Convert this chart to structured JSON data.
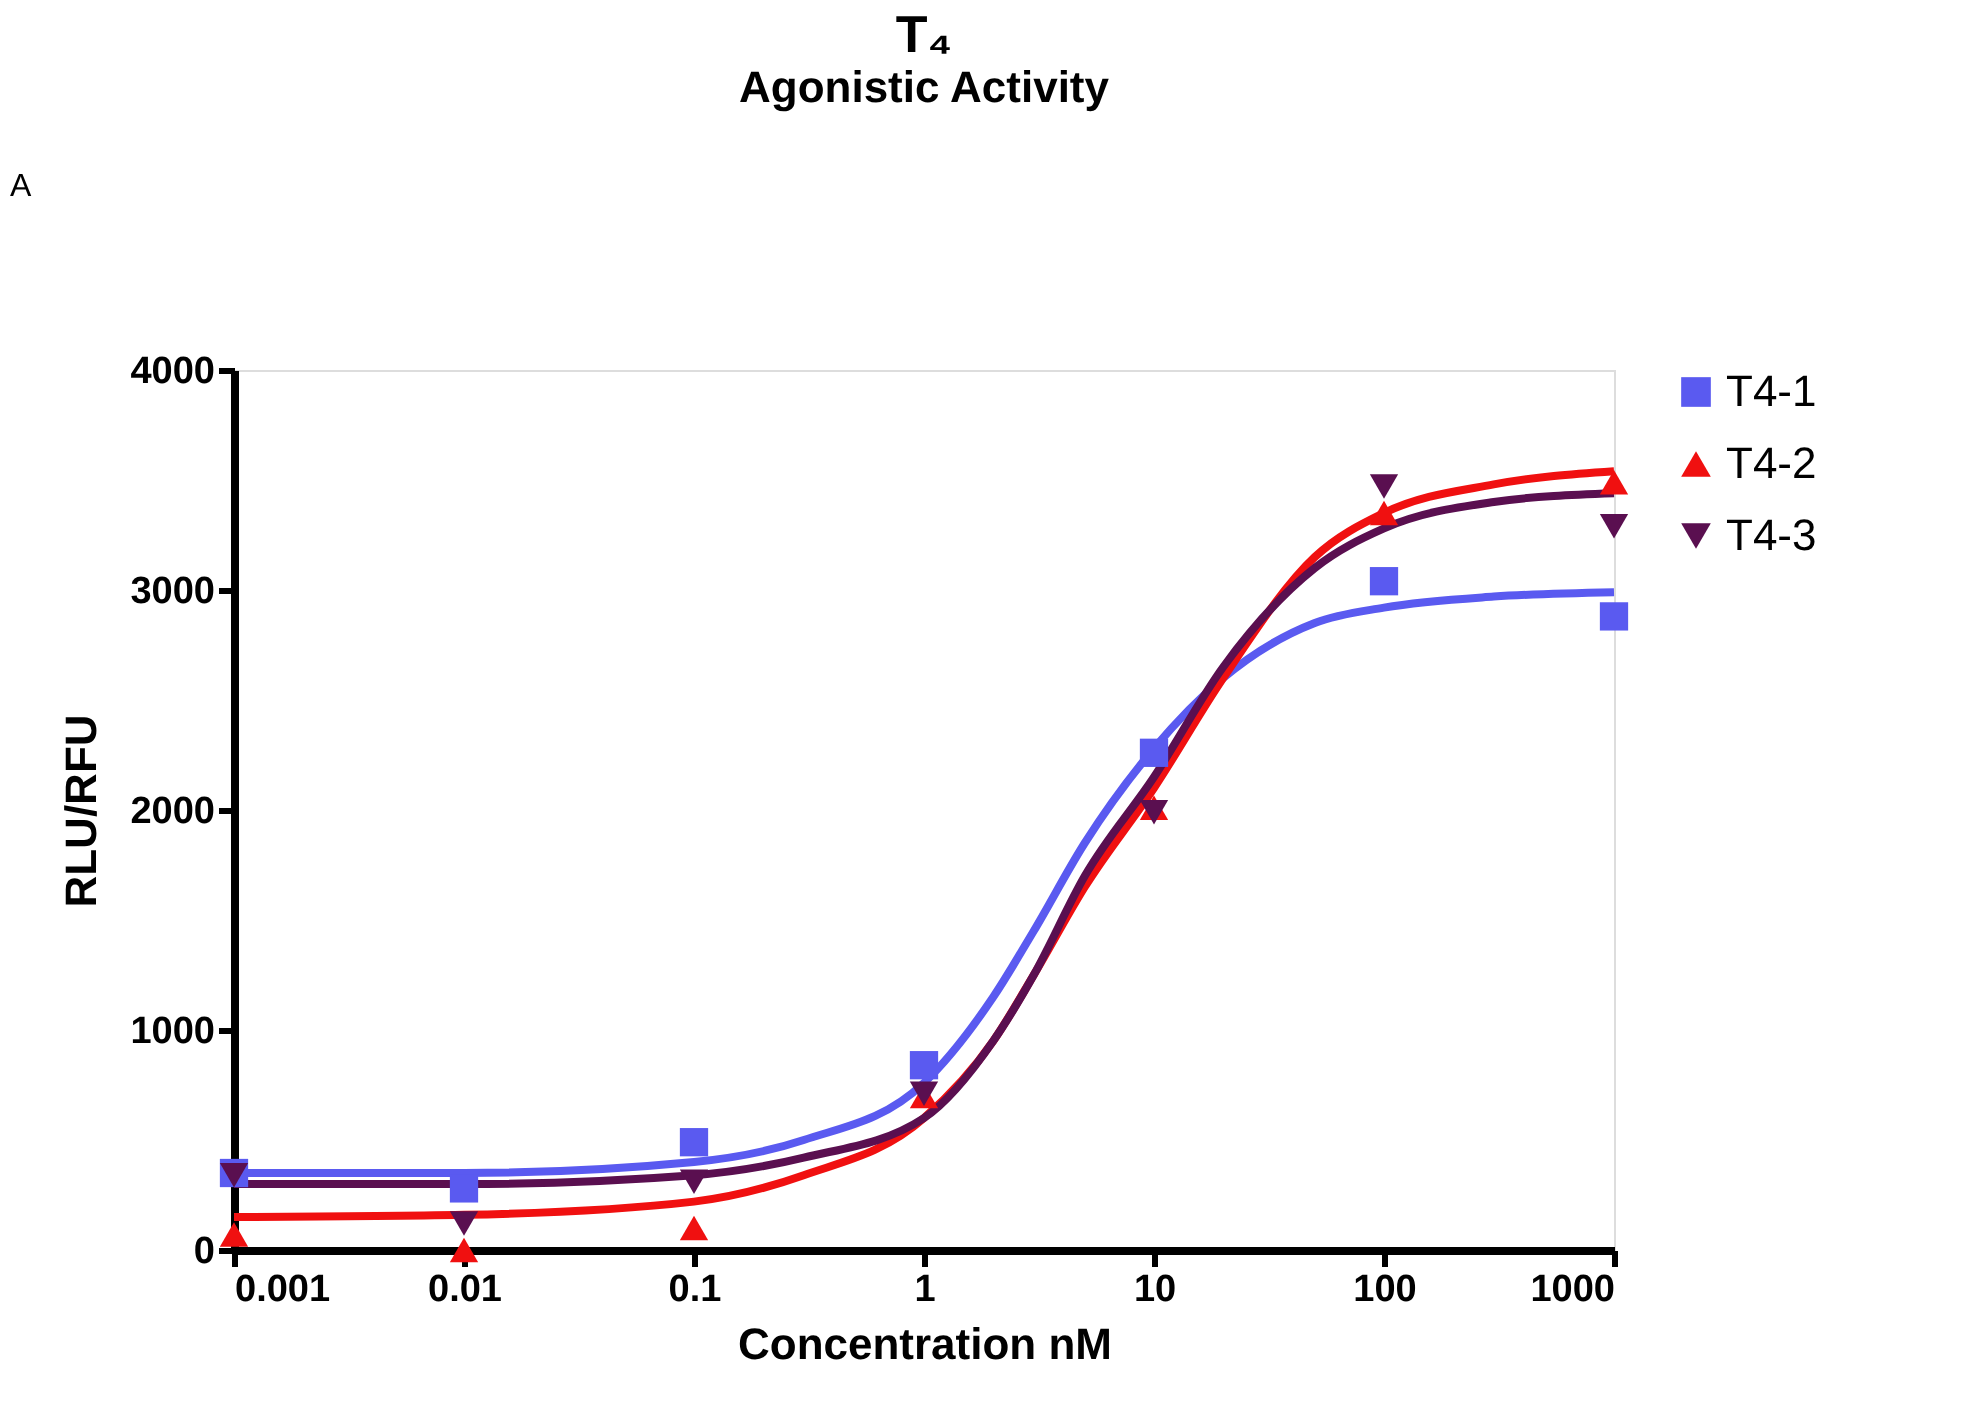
{
  "chart_data": {
    "type": "scatter",
    "title": "T₄",
    "subtitle": "Agonistic Activity",
    "xlabel": "Concentration nM",
    "ylabel": "RLU/RFU",
    "annotations": [
      "A"
    ],
    "log": "x",
    "xlim": [
      0.001,
      1000
    ],
    "xticks": [
      {
        "value": 0.001,
        "label": "0.001"
      },
      {
        "value": 0.01,
        "label": "0.01"
      },
      {
        "value": 0.1,
        "label": "0.1"
      },
      1,
      10,
      100,
      1000
    ],
    "ylim": [
      0,
      4000
    ],
    "yticks": [
      0,
      1000,
      2000,
      3000,
      4000
    ],
    "grid": false,
    "legend": "right",
    "series": [
      {
        "name": "T4-1",
        "color": "#5a5af0",
        "marker": "square",
        "x": [
          0.001,
          0.01,
          0.1,
          1,
          10,
          100,
          1000
        ],
        "values": [
          350,
          280,
          490,
          840,
          2260,
          3040,
          2880
        ]
      },
      {
        "name": "T4-2",
        "color": "#f01010",
        "marker": "triangle",
        "x": [
          0.001,
          0.01,
          0.1,
          1,
          10,
          100,
          1000
        ],
        "values": [
          70,
          0,
          100,
          700,
          2010,
          3350,
          3490
        ]
      },
      {
        "name": "T4-3",
        "color": "#5a0f50",
        "marker": "triangle-down",
        "x": [
          0.001,
          0.01,
          0.1,
          1,
          10,
          100,
          1000
        ],
        "values": [
          340,
          120,
          310,
          710,
          1990,
          3470,
          3290
        ]
      },
      {
        "type": "line",
        "color": "#5a5af0",
        "x": [
          0.001,
          0.01,
          0.1,
          0.3,
          1,
          2,
          3,
          5,
          10,
          20,
          50,
          100,
          300,
          1000
        ],
        "values": [
          350,
          350,
          400,
          500,
          760,
          1150,
          1450,
          1850,
          2280,
          2600,
          2850,
          2920,
          2970,
          2990
        ]
      },
      {
        "type": "line",
        "color": "#f01010",
        "x": [
          0.001,
          0.01,
          0.1,
          0.3,
          1,
          2,
          3,
          5,
          10,
          20,
          50,
          100,
          300,
          1000
        ],
        "values": [
          150,
          160,
          220,
          340,
          600,
          950,
          1250,
          1650,
          2100,
          2600,
          3150,
          3350,
          3480,
          3540
        ]
      },
      {
        "type": "line",
        "color": "#5a0f50",
        "x": [
          0.001,
          0.01,
          0.1,
          0.3,
          1,
          2,
          3,
          5,
          10,
          20,
          50,
          100,
          300,
          1000
        ],
        "values": [
          300,
          300,
          340,
          420,
          600,
          950,
          1250,
          1700,
          2150,
          2650,
          3100,
          3280,
          3400,
          3440
        ]
      }
    ]
  }
}
